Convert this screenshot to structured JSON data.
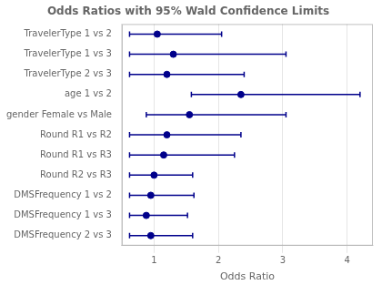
{
  "chart_data": {
    "type": "errorbar",
    "title": "Odds Ratios with 95% Wald Confidence Limits",
    "xlabel": "Odds Ratio",
    "categories": [
      "TravelerType 1 vs 2",
      "TravelerType 1 vs 3",
      "TravelerType 2 vs 3",
      "age 1 vs 2",
      "gender Female vs Male",
      "Round R1 vs R2",
      "Round R1 vs R3",
      "Round R2 vs R3",
      "DMSFrequency 1 vs 2",
      "DMSFrequency 1 vs 3",
      "DMSFrequency 2 vs 3"
    ],
    "values": [
      1.05,
      1.3,
      1.2,
      2.35,
      1.55,
      1.2,
      1.15,
      1.0,
      0.95,
      0.88,
      0.95
    ],
    "lower": [
      0.62,
      0.62,
      0.62,
      1.58,
      0.88,
      0.62,
      0.62,
      0.62,
      0.62,
      0.62,
      0.62
    ],
    "upper": [
      2.05,
      3.05,
      2.4,
      4.2,
      3.05,
      2.35,
      2.25,
      1.6,
      1.62,
      1.52,
      1.6
    ],
    "color": "#00008B",
    "xlim": [
      0.5,
      4.4
    ],
    "xticks": [
      1,
      2,
      3,
      4
    ],
    "grid": true
  }
}
